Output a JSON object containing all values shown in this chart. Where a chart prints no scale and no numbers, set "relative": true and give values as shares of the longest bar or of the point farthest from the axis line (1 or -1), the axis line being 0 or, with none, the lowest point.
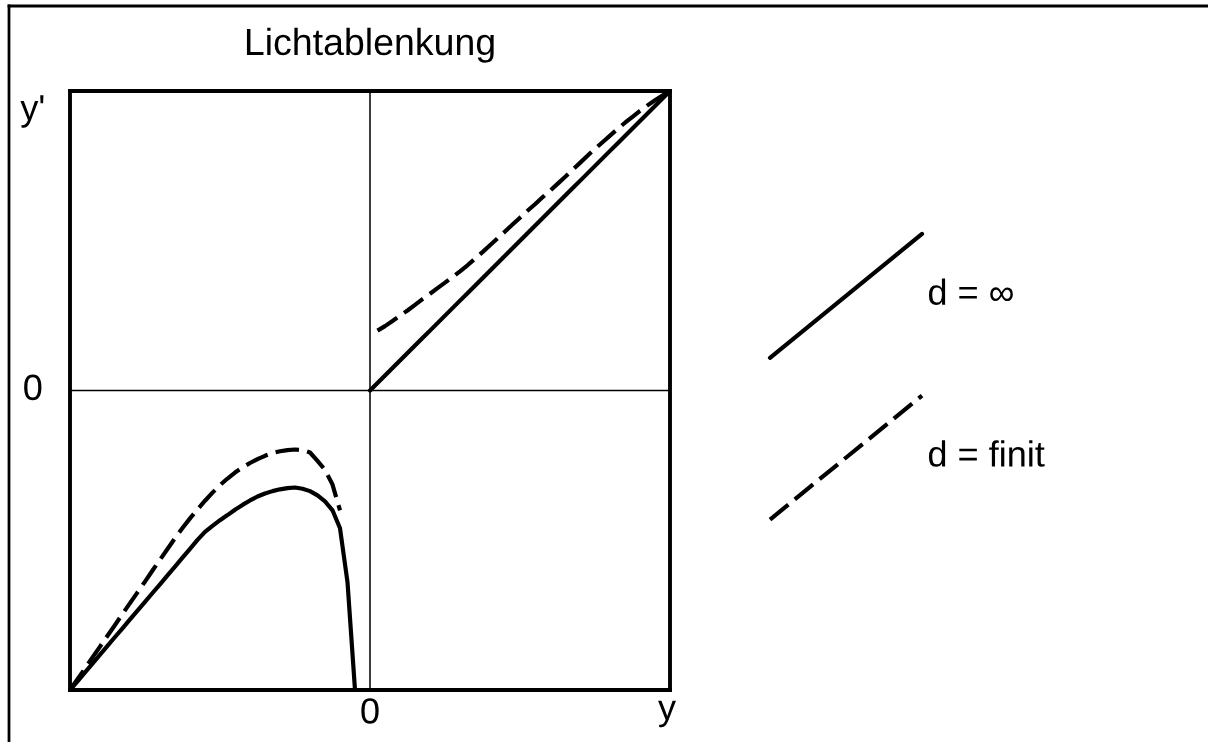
{
  "chart_data": {
    "type": "line",
    "title": "Lichtablenkung",
    "xlabel": "y",
    "ylabel": "y'",
    "relative": true,
    "categories": [
      null,
      null,
      null,
      null,
      null,
      null,
      null,
      null,
      null,
      null,
      null,
      null,
      null,
      null,
      null,
      null,
      null,
      null,
      null,
      null,
      null,
      null,
      null,
      null,
      null,
      null,
      null,
      null,
      null,
      null,
      null,
      null,
      null,
      null,
      null,
      null,
      null,
      null,
      null,
      null,
      null,
      null,
      null,
      null,
      null,
      null,
      null,
      null,
      null,
      null,
      null,
      null,
      null,
      null,
      null,
      null,
      null,
      null,
      null,
      null,
      null,
      null,
      null,
      null,
      null,
      null,
      null,
      null,
      null,
      null,
      null,
      null,
      null,
      null,
      null,
      null,
      null,
      null,
      null,
      null,
      null
    ],
    "series": [
      {
        "name": "d = ∞",
        "color": "#000000",
        "line_style": "solid",
        "values": [
          -1,
          -0.971,
          -0.941,
          -0.912,
          -0.882,
          -0.853,
          -0.823,
          -0.794,
          -0.764,
          -0.735,
          -0.706,
          -0.676,
          -0.647,
          -0.617,
          -0.588,
          -0.558,
          -0.529,
          -0.499,
          -0.472,
          -0.452,
          -0.433,
          -0.416,
          -0.398,
          -0.382,
          -0.367,
          -0.354,
          -0.344,
          -0.336,
          -0.33,
          -0.326,
          -0.324,
          -0.328,
          -0.336,
          -0.35,
          -0.37,
          -0.4,
          -0.46,
          -0.64,
          -1,
          null,
          0,
          0.025,
          0.05,
          0.075,
          0.1,
          0.125,
          0.15,
          0.175,
          0.2,
          0.225,
          0.25,
          0.275,
          0.3,
          0.325,
          0.35,
          0.375,
          0.4,
          0.425,
          0.45,
          0.475,
          0.5,
          0.525,
          0.55,
          0.575,
          0.6,
          0.625,
          0.65,
          0.675,
          0.7,
          0.725,
          0.75,
          0.775,
          0.8,
          0.825,
          0.85,
          0.875,
          0.9,
          0.925,
          0.95,
          0.975,
          1
        ]
      },
      {
        "name": "d = finit",
        "color": "#000000",
        "line_style": "dashed",
        "values": [
          -1,
          -0.964,
          -0.928,
          -0.891,
          -0.855,
          -0.819,
          -0.783,
          -0.746,
          -0.71,
          -0.674,
          -0.638,
          -0.601,
          -0.565,
          -0.529,
          -0.493,
          -0.459,
          -0.427,
          -0.397,
          -0.368,
          -0.341,
          -0.316,
          -0.294,
          -0.274,
          -0.257,
          -0.242,
          -0.229,
          -0.218,
          -0.209,
          -0.203,
          -0.199,
          -0.197,
          -0.199,
          -0.207,
          -0.235,
          -0.265,
          -0.314,
          -0.4,
          null,
          null,
          null,
          null,
          0.2,
          0.215,
          0.232,
          0.25,
          0.267,
          0.286,
          0.305,
          0.323,
          0.342,
          0.36,
          0.379,
          0.398,
          0.418,
          0.44,
          0.462,
          0.485,
          0.508,
          0.531,
          0.554,
          0.577,
          0.6,
          0.622,
          0.645,
          0.667,
          0.69,
          0.713,
          0.737,
          0.76,
          0.784,
          0.807,
          0.829,
          0.851,
          0.873,
          0.894,
          0.914,
          0.934,
          0.952,
          0.969,
          0.985,
          1
        ]
      }
    ],
    "legend": "right",
    "ref_lines": [
      {
        "axis": "y",
        "value": 0,
        "label": "0"
      }
    ],
    "annotations": [
      "0"
    ]
  }
}
